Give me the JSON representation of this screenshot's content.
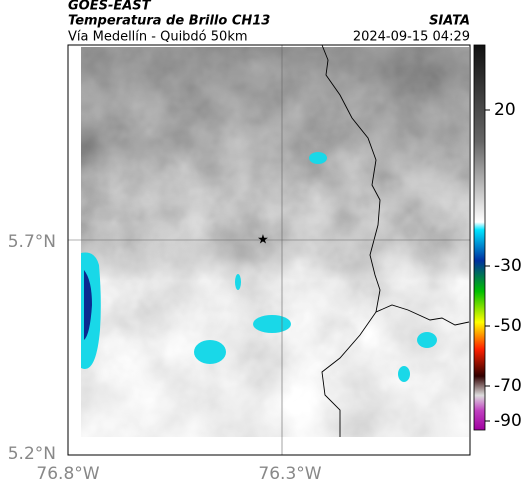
{
  "header": {
    "satellite": "GOES-EAST",
    "product": "Temperatura de Brillo CH13",
    "source": "SIATA",
    "route": "Vía Medellín - Quibdó 50km",
    "timestamp": "2024-09-15 04:29"
  },
  "map": {
    "lat_labels": [
      "5.7°N",
      "5.2°N"
    ],
    "lon_labels": [
      "76.8°W",
      "76.3°W"
    ]
  },
  "colorbar": {
    "ticks": [
      20,
      -30,
      -50,
      -70,
      -90
    ]
  }
}
